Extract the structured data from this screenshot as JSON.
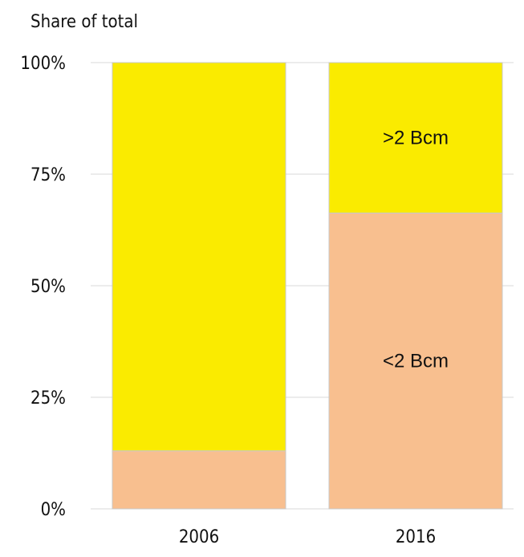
{
  "chart_data": {
    "type": "bar",
    "stacked": true,
    "percent": true,
    "ylabel": "Share of total",
    "xlabel": "",
    "categories": [
      "2006",
      "2016"
    ],
    "series": [
      {
        "label_in_bar": "<2 Bcm",
        "values": [
          13,
          66.3
        ],
        "color": "#F8BF8F"
      },
      {
        "label_in_bar": ">2 Bcm",
        "values": [
          87,
          33.7
        ],
        "color": "#FAEB00"
      }
    ],
    "ylim": [
      0,
      100
    ],
    "yticks": [
      0,
      25,
      50,
      75,
      100
    ],
    "ytick_labels": [
      "0%",
      "25%",
      "50%",
      "75%",
      "100%"
    ],
    "grid": true,
    "legend": "none"
  }
}
